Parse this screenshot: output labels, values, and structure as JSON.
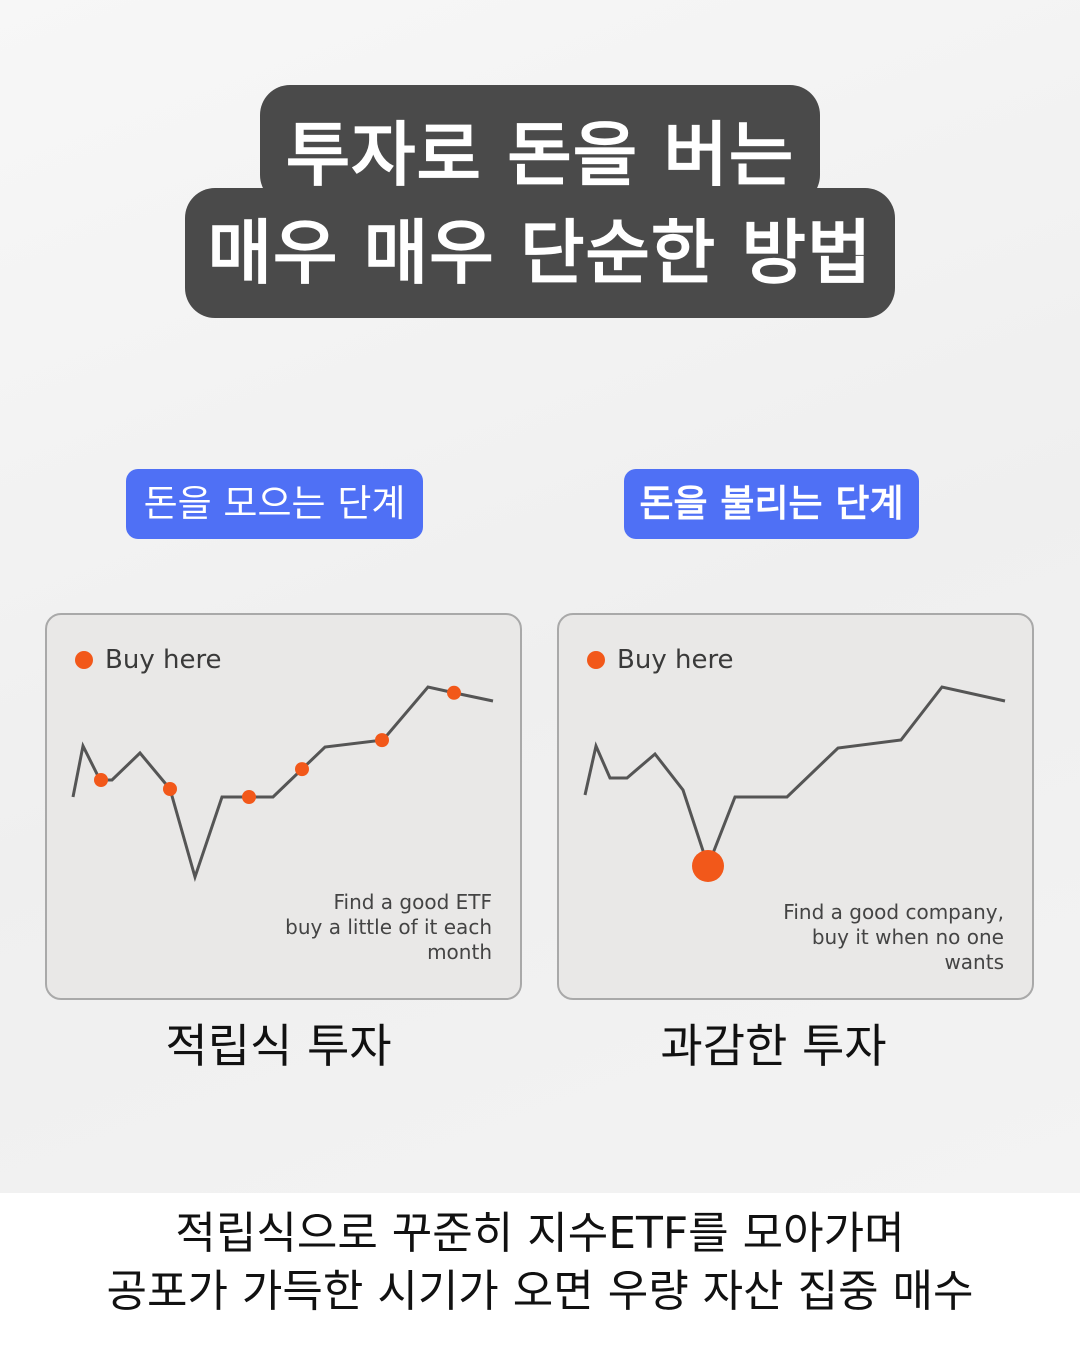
{
  "title": {
    "line1": "투자로 돈을 버는",
    "line2": "매우 매우 단순한 방법"
  },
  "stages": {
    "left": "돈을 모으는 단계",
    "right": "돈을 불리는 단계"
  },
  "colors": {
    "title_bg": "#4a4a4a",
    "pill": "#4f70f5",
    "buy_dot": "#f2581a",
    "line": "#555555"
  },
  "chart_data": [
    {
      "type": "line",
      "legend": "Buy here",
      "note_lines": [
        "Find a good ETF",
        "buy a little of it each",
        "month"
      ],
      "caption": "적립식 투자",
      "x": [
        0,
        10,
        27,
        39,
        67,
        97,
        122,
        149,
        200,
        252,
        310,
        355,
        382,
        420
      ],
      "y": [
        80,
        131,
        97,
        97,
        124,
        88,
        0,
        80,
        80,
        130,
        137,
        190,
        184,
        176
      ],
      "buy_points_x": [
        28,
        97,
        176,
        229,
        309,
        381
      ]
    },
    {
      "type": "line",
      "legend": "Buy here",
      "note_lines": [
        "Find a good company,",
        "buy it when no one",
        "wants"
      ],
      "caption": "과감한 투자",
      "x": [
        0,
        11,
        25,
        42,
        70,
        98,
        123,
        150,
        202,
        253,
        316,
        357,
        420
      ],
      "y": [
        71,
        120,
        88,
        88,
        112,
        76,
        0,
        69,
        69,
        118,
        126,
        179,
        165
      ],
      "buy_points_x": [
        123
      ]
    }
  ],
  "bottom": {
    "line1": "적립식으로 꾸준히 지수ETF를 모아가며",
    "line2": "공포가 가득한 시기가 오면 우량 자산 집중 매수"
  }
}
